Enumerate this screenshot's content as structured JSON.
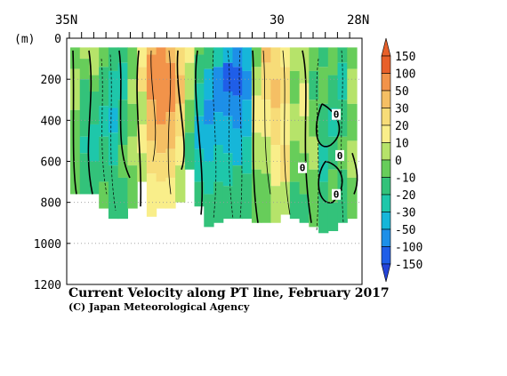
{
  "chart_data": {
    "type": "heatmap",
    "title": "Current Velocity along PT line, February 2017",
    "credit": "(C) Japan Meteorological Agency",
    "y_unit": "(m)",
    "x_top_labels": [
      "35N",
      "30",
      "28N"
    ],
    "y_ticks": [
      0,
      200,
      400,
      600,
      800,
      1000,
      1200
    ],
    "ylim": [
      1200,
      0
    ],
    "colorbar_labels": [
      "150",
      "100",
      "50",
      "30",
      "20",
      "10",
      "0",
      "-10",
      "-20",
      "-30",
      "-50",
      "-100",
      "-150"
    ],
    "colorbar_colors": [
      "#e8602a",
      "#f2934a",
      "#f5bf64",
      "#f7dc78",
      "#f9ee8a",
      "#b6e36a",
      "#67cd5a",
      "#33c27a",
      "#1ec7aa",
      "#16b6d9",
      "#1d8fe8",
      "#1f5ee8"
    ],
    "contour_label": "0",
    "band_order": [
      "-20",
      "-10",
      "0",
      "10",
      "20",
      "30",
      "50",
      "100"
    ],
    "bands": [
      {
        "band": "-20",
        "color": "#1ec7aa"
      },
      {
        "band": "-10",
        "color": "#33c27a"
      },
      {
        "band": "0",
        "color": "#67cd5a"
      },
      {
        "band": "10",
        "color": "#b6e36a"
      },
      {
        "band": "20",
        "color": "#f9ee8a"
      },
      {
        "band": "30",
        "color": "#f7dc78"
      },
      {
        "band": "50",
        "color": "#f5bf64"
      },
      {
        "band": "100",
        "color": "#f2934a"
      }
    ]
  }
}
